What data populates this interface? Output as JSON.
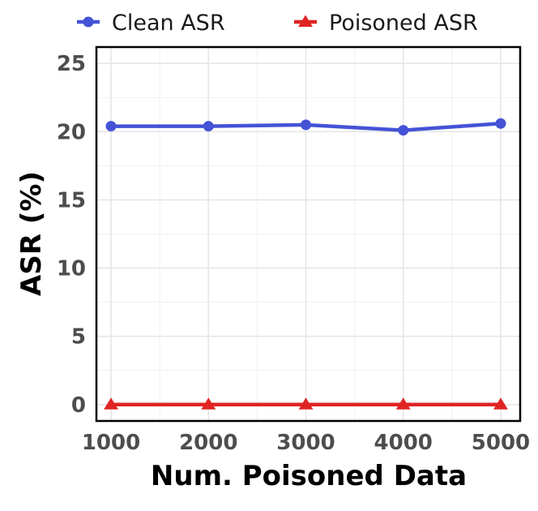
{
  "chart_data": {
    "type": "line",
    "xlabel": "Num. Poisoned Data",
    "ylabel": "ASR (%)",
    "x": [
      1000,
      2000,
      3000,
      4000,
      5000
    ],
    "x_ticks": [
      "1000",
      "2000",
      "3000",
      "4000",
      "5000"
    ],
    "y_ticks": [
      "0",
      "5",
      "10",
      "15",
      "20",
      "25"
    ],
    "xlim": [
      850,
      5200
    ],
    "ylim": [
      -1.2,
      26.2
    ],
    "grid": true,
    "legend_position": "top",
    "series": [
      {
        "name": "Clean ASR",
        "color": "#4453d6",
        "marker": "circle",
        "values": [
          20.4,
          20.4,
          20.5,
          20.1,
          20.6
        ]
      },
      {
        "name": "Poisoned ASR",
        "color": "#e02424",
        "marker": "triangle",
        "values": [
          0,
          0,
          0,
          0,
          0
        ]
      }
    ]
  }
}
